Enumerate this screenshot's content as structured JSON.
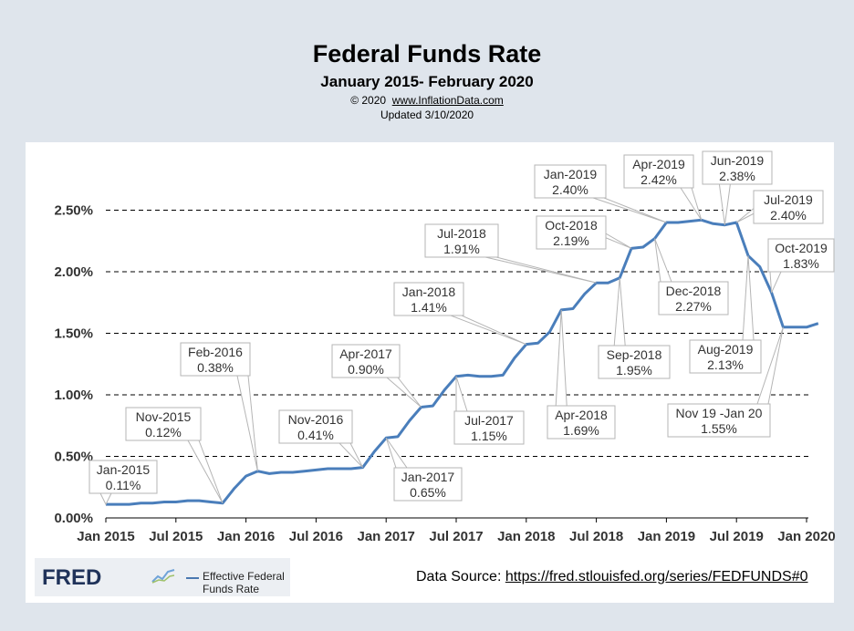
{
  "header": {
    "title": "Federal Funds Rate",
    "subtitle": "January 2015- February 2020",
    "copyright": "© 2020",
    "site": "www.InflationData.com",
    "updated": "Updated  3/10/2020"
  },
  "footer": {
    "fred_logo": "FRED",
    "legend_label": "Effective Federal Funds Rate",
    "source_label": "Data Source: ",
    "source_url": "https://fred.stlouisfed.org/series/FEDFUNDS#0"
  },
  "colors": {
    "line": "#4a7ebb",
    "background": "#dfe5ec",
    "plot_background": "#ffffff"
  },
  "chart_data": {
    "type": "line",
    "title": "Federal Funds Rate",
    "subtitle": "January 2015- February 2020",
    "xlabel": "",
    "ylabel": "",
    "ylim": [
      0,
      2.5
    ],
    "grid": true,
    "y_ticks": [
      {
        "value": 0,
        "label": "0.00%"
      },
      {
        "value": 0.5,
        "label": "0.50%"
      },
      {
        "value": 1.0,
        "label": "1.00%"
      },
      {
        "value": 1.5,
        "label": "1.50%"
      },
      {
        "value": 2.0,
        "label": "2.00%"
      },
      {
        "value": 2.5,
        "label": "2.50%"
      }
    ],
    "x_ticks": [
      {
        "index": 0,
        "label": "Jan 2015"
      },
      {
        "index": 6,
        "label": "Jul 2015"
      },
      {
        "index": 12,
        "label": "Jan 2016"
      },
      {
        "index": 18,
        "label": "Jul 2016"
      },
      {
        "index": 24,
        "label": "Jan 2017"
      },
      {
        "index": 30,
        "label": "Jul 2017"
      },
      {
        "index": 36,
        "label": "Jan 2018"
      },
      {
        "index": 42,
        "label": "Jul 2018"
      },
      {
        "index": 48,
        "label": "Jan 2019"
      },
      {
        "index": 54,
        "label": "Jul 2019"
      },
      {
        "index": 60,
        "label": "Jan 2020"
      }
    ],
    "series": [
      {
        "name": "Effective Federal Funds Rate",
        "start": "2015-01",
        "values": [
          0.11,
          0.11,
          0.11,
          0.12,
          0.12,
          0.13,
          0.13,
          0.14,
          0.14,
          0.13,
          0.12,
          0.24,
          0.34,
          0.38,
          0.36,
          0.37,
          0.37,
          0.38,
          0.39,
          0.4,
          0.4,
          0.4,
          0.41,
          0.54,
          0.65,
          0.66,
          0.79,
          0.9,
          0.91,
          1.04,
          1.15,
          1.16,
          1.15,
          1.15,
          1.16,
          1.3,
          1.41,
          1.42,
          1.51,
          1.69,
          1.7,
          1.82,
          1.91,
          1.91,
          1.95,
          2.19,
          2.2,
          2.27,
          2.4,
          2.4,
          2.41,
          2.42,
          2.39,
          2.38,
          2.4,
          2.13,
          2.04,
          1.83,
          1.55,
          1.55,
          1.55,
          1.58
        ]
      }
    ],
    "annotations": [
      {
        "label": "Jan-2015",
        "value": "0.11%",
        "index": 0
      },
      {
        "label": "Nov-2015",
        "value": "0.12%",
        "index": 10
      },
      {
        "label": "Feb-2016",
        "value": "0.38%",
        "index": 13
      },
      {
        "label": "Nov-2016",
        "value": "0.41%",
        "index": 22
      },
      {
        "label": "Jan-2017",
        "value": "0.65%",
        "index": 24
      },
      {
        "label": "Apr-2017",
        "value": "0.90%",
        "index": 27
      },
      {
        "label": "Jul-2017",
        "value": "1.15%",
        "index": 30
      },
      {
        "label": "Jan-2018",
        "value": "1.41%",
        "index": 36
      },
      {
        "label": "Apr-2018",
        "value": "1.69%",
        "index": 39
      },
      {
        "label": "Jul-2018",
        "value": "1.91%",
        "index": 42
      },
      {
        "label": "Sep-2018",
        "value": "1.95%",
        "index": 44
      },
      {
        "label": "Oct-2018",
        "value": "2.19%",
        "index": 45
      },
      {
        "label": "Dec-2018",
        "value": "2.27%",
        "index": 47
      },
      {
        "label": "Jan-2019",
        "value": "2.40%",
        "index": 48
      },
      {
        "label": "Apr-2019",
        "value": "2.42%",
        "index": 51
      },
      {
        "label": "Jun-2019",
        "value": "2.38%",
        "index": 53
      },
      {
        "label": "Jul-2019",
        "value": "2.40%",
        "index": 54
      },
      {
        "label": "Aug-2019",
        "value": "2.13%",
        "index": 55
      },
      {
        "label": "Oct-2019",
        "value": "1.83%",
        "index": 57
      },
      {
        "label": "Nov 19 -Jan 20",
        "value": "1.55%",
        "index": 58
      }
    ]
  }
}
